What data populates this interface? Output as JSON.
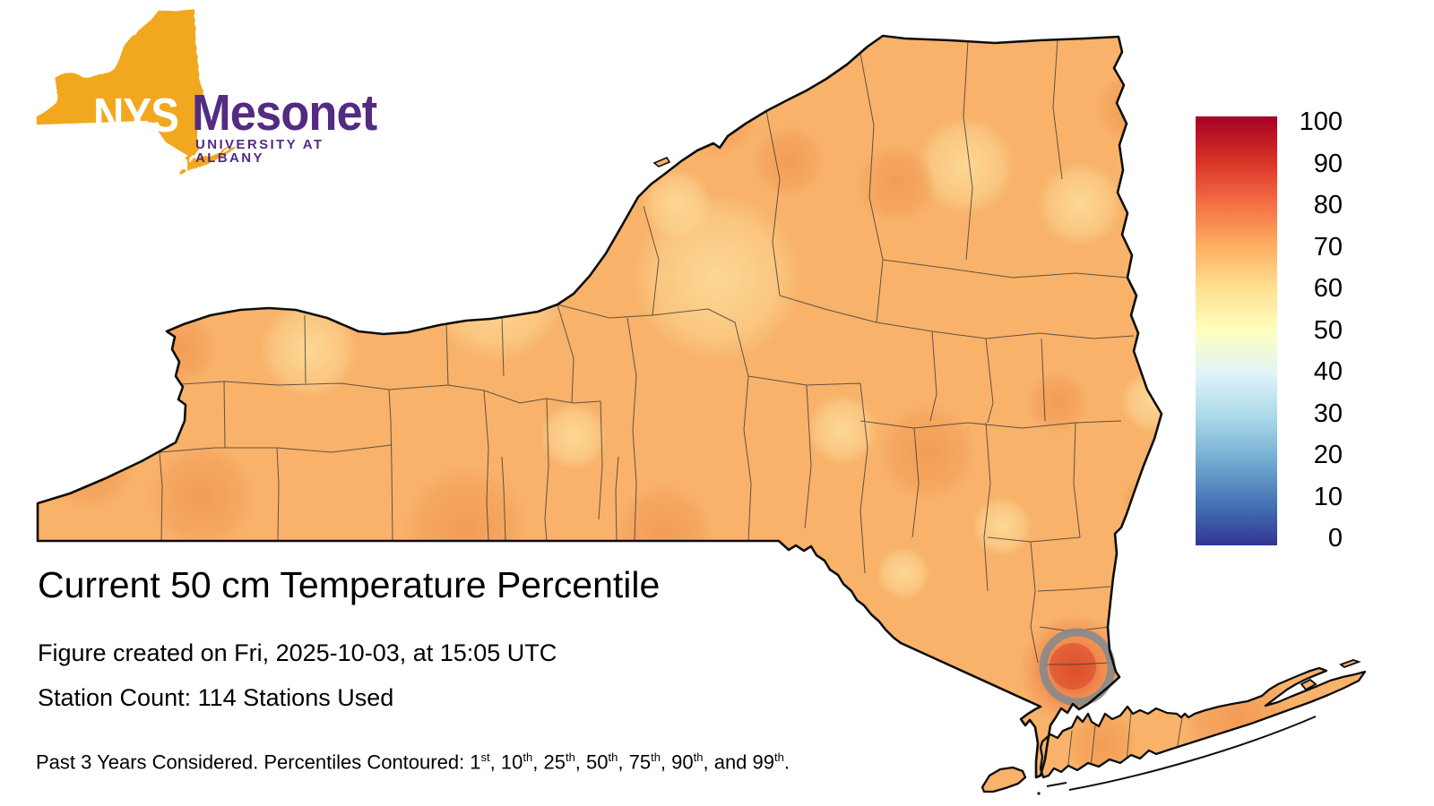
{
  "logo": {
    "nys": "NYS",
    "mesonet": "Mesonet",
    "university": "UNIVERSITY AT ALBANY",
    "colors": {
      "gold": "#F1A81F",
      "purple": "#532B82",
      "nys_text": "#FFFFFF"
    }
  },
  "text": {
    "title": "Current 50 cm Temperature Percentile",
    "created": "Figure created on Fri, 2025-10-03, at 15:05 UTC",
    "stations": "Station Count: 114 Stations Used"
  },
  "footer": {
    "prefix": "Past 3 Years Considered. Percentiles Contoured: ",
    "percentiles": [
      {
        "num": "1",
        "ord": "st"
      },
      {
        "num": "10",
        "ord": "th"
      },
      {
        "num": "25",
        "ord": "th"
      },
      {
        "num": "50",
        "ord": "th"
      },
      {
        "num": "75",
        "ord": "th"
      },
      {
        "num": "90",
        "ord": "th"
      },
      {
        "num": "99",
        "ord": "th"
      }
    ],
    "separator": ", ",
    "last_separator": ", and ",
    "suffix": "."
  },
  "colorbar": {
    "ticks": [
      "100",
      "90",
      "80",
      "70",
      "60",
      "50",
      "40",
      "30",
      "20",
      "10",
      "0"
    ],
    "stops": [
      {
        "value": 100,
        "color": "#a50026"
      },
      {
        "value": 90,
        "color": "#d73027"
      },
      {
        "value": 80,
        "color": "#f46d43"
      },
      {
        "value": 70,
        "color": "#fdae61"
      },
      {
        "value": 60,
        "color": "#fee090"
      },
      {
        "value": 50,
        "color": "#ffffbf"
      },
      {
        "value": 40,
        "color": "#e0f3f8"
      },
      {
        "value": 30,
        "color": "#abd9e9"
      },
      {
        "value": 20,
        "color": "#74add1"
      },
      {
        "value": 10,
        "color": "#4575b4"
      },
      {
        "value": 0,
        "color": "#313695"
      }
    ]
  },
  "map": {
    "region": "New York State with county boundaries",
    "contour_feature": "75th percentile contour ring near NYC / Rockland",
    "colors": {
      "background": "#ffffff",
      "base_fill": "#F8B26A",
      "light_blob": "#FCDA97",
      "dark_blob": "#F29A54",
      "hotspot_core": "#DD4F2D",
      "hotspot_mid": "#EE7F49",
      "contour_ring": "#8A8A8A",
      "state_outline": "#0D0D0D",
      "county_line": "#3A3A3A"
    }
  }
}
